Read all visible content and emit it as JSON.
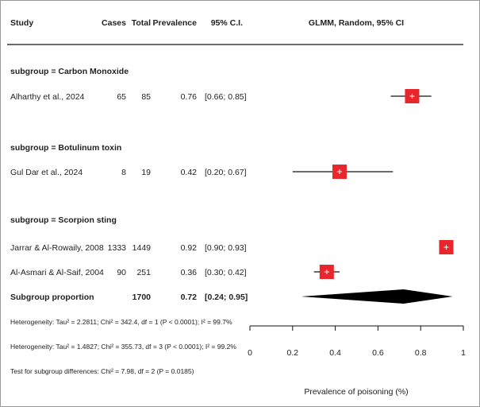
{
  "headers": {
    "study": "Study",
    "cases": "Cases",
    "total": "Total",
    "prevalence": "Prevalence",
    "ci": "95% C.I.",
    "model": "GLMM, Random, 95% CI"
  },
  "subgroup_labels": [
    "subgroup = Carbon Monoxide",
    "subgroup = Botulinum toxin",
    "subgroup = Scorpion sting"
  ],
  "studies": [
    {
      "study": "Alharthy et al., 2024",
      "cases": "65",
      "total": "85",
      "prevalence": "0.76",
      "ci": "[0.66; 0.85]"
    },
    {
      "study": "Gul Dar et al., 2024",
      "cases": "8",
      "total": "19",
      "prevalence": "0.42",
      "ci": "[0.20; 0.67]"
    },
    {
      "study": "Jarrar & Al-Rowaily, 2008",
      "cases": "1333",
      "total": "1449",
      "prevalence": "0.92",
      "ci": "[0.90; 0.93]"
    },
    {
      "study": "Al-Asmari & Al-Saif, 2004",
      "cases": "90",
      "total": "251",
      "prevalence": "0.36",
      "ci": "[0.30; 0.42]"
    }
  ],
  "summary": {
    "label": "Subgroup proportion",
    "total": "1700",
    "prevalence": "0.72",
    "ci": "[0.24; 0.95]"
  },
  "stats": {
    "heterogeneity_subgroup": "Heterogeneity: Tau² = 2.2811; Chi² = 342.4, df = 1 (P < 0.0001); I² = 99.7%",
    "heterogeneity_overall": "Heterogeneity: Tau² = 1.4827; Chi² = 355.73, df = 3 (P < 0.0001); I² = 99.2%",
    "subgroup_test": "Test for subgroup differences: Chi² = 7.98, df = 2 (P = 0.0185)"
  },
  "chart_data": {
    "type": "forest",
    "title": "GLMM, Random, 95% CI",
    "xlabel": "Prevalence of poisoning (%)",
    "xlim": [
      0,
      1
    ],
    "xticks": [
      0,
      0.2,
      0.4,
      0.6,
      0.8,
      1
    ],
    "tick_labels": [
      "0",
      "0.2",
      "0.4",
      "0.6",
      "0.8",
      "1"
    ],
    "studies": [
      {
        "name": "Alharthy et al., 2024",
        "estimate": 0.76,
        "lower": 0.66,
        "upper": 0.85,
        "weight": 1.0
      },
      {
        "name": "Gul Dar et al., 2024",
        "estimate": 0.42,
        "lower": 0.2,
        "upper": 0.67,
        "weight": 1.0
      },
      {
        "name": "Jarrar & Al-Rowaily, 2008",
        "estimate": 0.92,
        "lower": 0.9,
        "upper": 0.93,
        "weight": 1.0
      },
      {
        "name": "Al-Asmari & Al-Saif, 2004",
        "estimate": 0.36,
        "lower": 0.3,
        "upper": 0.42,
        "weight": 1.0
      }
    ],
    "summary": {
      "estimate": 0.72,
      "lower": 0.24,
      "upper": 0.95
    },
    "box_color": "#e8262b",
    "line_color": "#111111",
    "diamond_color": "#000000"
  }
}
